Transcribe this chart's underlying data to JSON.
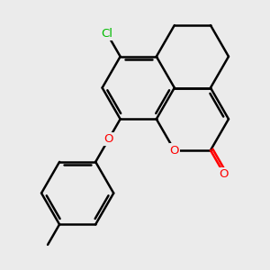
{
  "background_color": "#ebebeb",
  "bond_color": "#000000",
  "bond_width": 1.8,
  "atom_colors": {
    "O": "#ff0000",
    "Cl": "#00bb00"
  }
}
